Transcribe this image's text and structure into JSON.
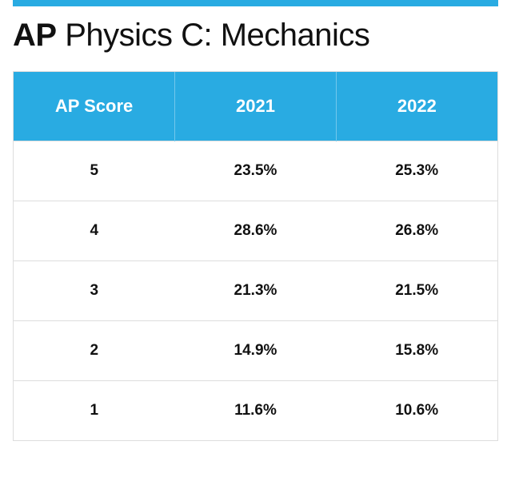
{
  "title_bold": "AP",
  "title_rest": " Physics C: Mechanics",
  "accent_color": "#29abe2",
  "header_text_color": "#ffffff",
  "body_text_color": "#111111",
  "border_color": "#dddddd",
  "background_color": "#ffffff",
  "title_fontsize": 40,
  "header_fontsize": 22,
  "cell_fontsize": 19,
  "table": {
    "type": "table",
    "columns": [
      "AP Score",
      "2021",
      "2022"
    ],
    "rows": [
      [
        "5",
        "23.5%",
        "25.3%"
      ],
      [
        "4",
        "28.6%",
        "26.8%"
      ],
      [
        "3",
        "21.3%",
        "21.5%"
      ],
      [
        "2",
        "14.9%",
        "15.8%"
      ],
      [
        "1",
        "11.6%",
        "10.6%"
      ]
    ]
  }
}
